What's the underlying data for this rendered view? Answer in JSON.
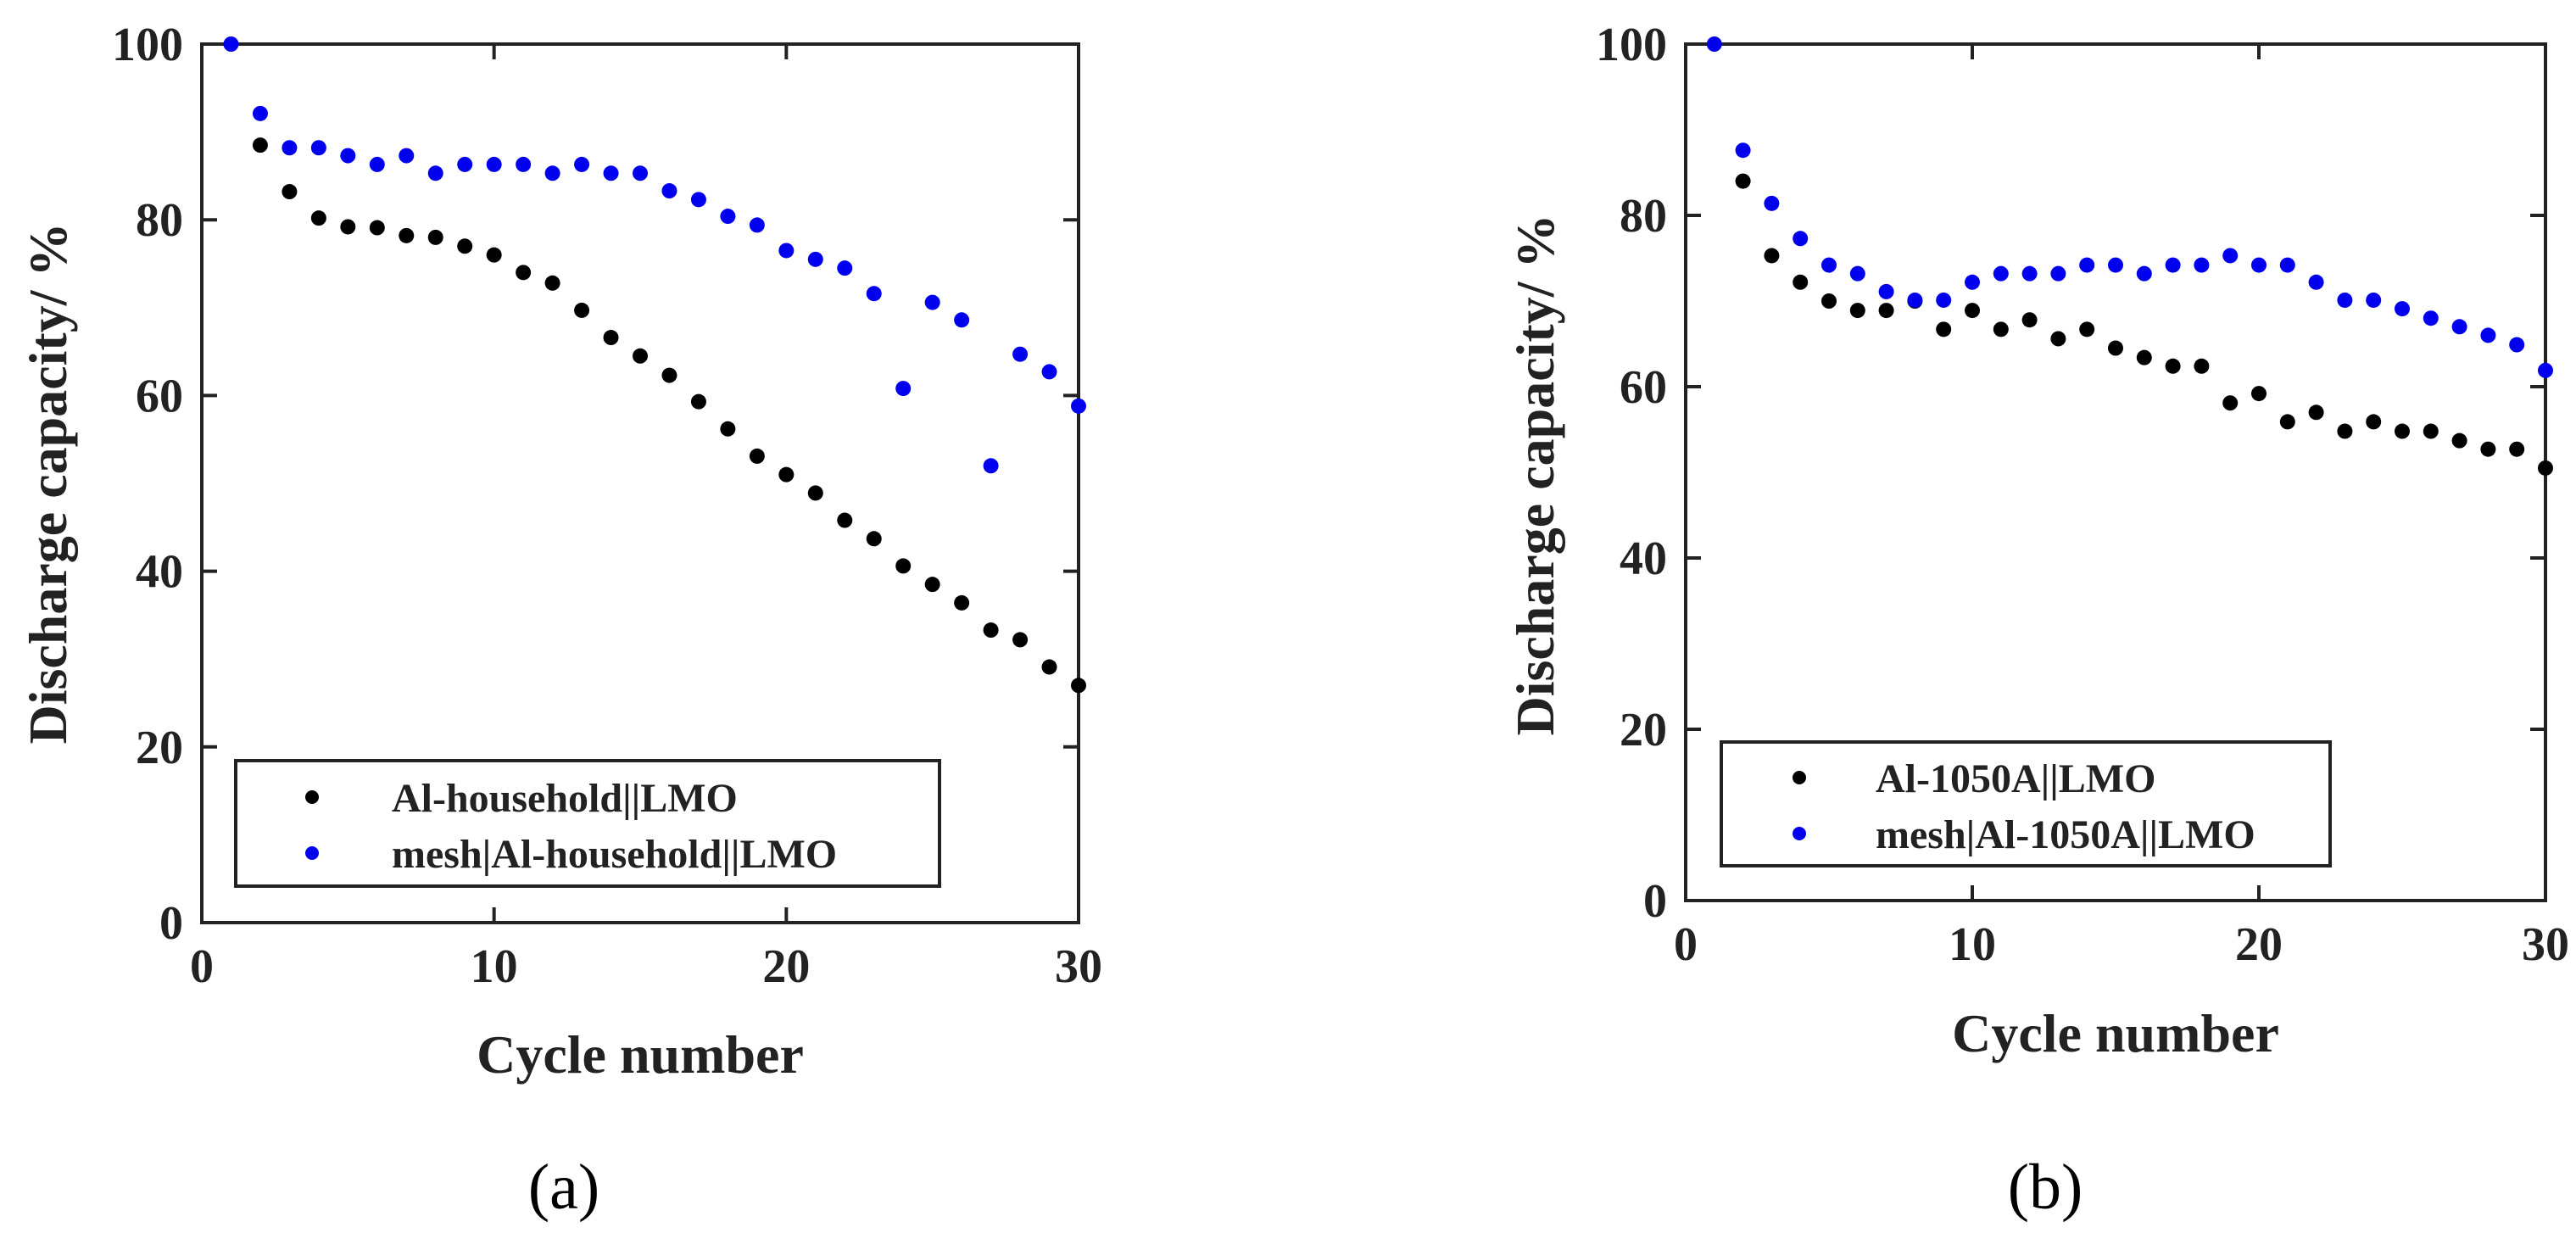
{
  "chart_data": [
    {
      "type": "scatter",
      "panel_label": "(a)",
      "xlabel": "Cycle number",
      "ylabel": "Discharge capacity/ %",
      "xlim": [
        0,
        30
      ],
      "ylim": [
        0,
        100
      ],
      "xticks": [
        0,
        10,
        20,
        30
      ],
      "yticks": [
        0,
        20,
        40,
        60,
        80,
        100
      ],
      "legend_position": "bottom-left",
      "series": [
        {
          "name": "Al-household||LMO",
          "color": "#000000",
          "x": [
            2,
            3,
            4,
            5,
            6,
            7,
            8,
            9,
            10,
            11,
            12,
            13,
            14,
            15,
            16,
            17,
            18,
            19,
            20,
            21,
            22,
            23,
            24,
            25,
            26,
            27,
            28,
            29,
            30
          ],
          "y": [
            88.5,
            83.2,
            80.2,
            79.2,
            79.1,
            78.2,
            78.0,
            77.0,
            76.0,
            74.0,
            72.8,
            69.7,
            66.6,
            64.5,
            62.3,
            59.3,
            56.2,
            53.1,
            51.0,
            48.9,
            45.8,
            43.7,
            40.6,
            38.5,
            36.4,
            33.3,
            32.2,
            29.1,
            27.0
          ]
        },
        {
          "name": "mesh|Al-household||LMO",
          "color": "#0000ee",
          "x": [
            1,
            2,
            3,
            4,
            5,
            6,
            7,
            8,
            9,
            10,
            11,
            12,
            13,
            14,
            15,
            16,
            17,
            18,
            19,
            20,
            21,
            22,
            23,
            24,
            25,
            26,
            27,
            28,
            29,
            30
          ],
          "y": [
            100,
            92.1,
            88.2,
            88.2,
            87.3,
            86.3,
            87.3,
            85.3,
            86.3,
            86.3,
            86.3,
            85.3,
            86.3,
            85.3,
            85.3,
            83.3,
            82.3,
            80.4,
            79.4,
            76.5,
            75.5,
            74.5,
            71.6,
            60.8,
            70.6,
            68.6,
            52.0,
            64.7,
            62.7,
            58.8
          ]
        }
      ]
    },
    {
      "type": "scatter",
      "panel_label": "(b)",
      "xlabel": "Cycle number",
      "ylabel": "Discharge capacity/ %",
      "xlim": [
        0,
        30
      ],
      "ylim": [
        0,
        100
      ],
      "xticks": [
        0,
        10,
        20,
        30
      ],
      "yticks": [
        0,
        20,
        40,
        60,
        80,
        100
      ],
      "legend_position": "bottom-left",
      "series": [
        {
          "name": "Al-1050A||LMO",
          "color": "#000000",
          "x": [
            2,
            3,
            4,
            5,
            6,
            7,
            8,
            9,
            10,
            11,
            12,
            13,
            14,
            15,
            16,
            17,
            18,
            19,
            20,
            21,
            22,
            23,
            24,
            25,
            26,
            27,
            28,
            29,
            30
          ],
          "y": [
            84.0,
            75.3,
            72.2,
            70.0,
            68.9,
            68.9,
            70.0,
            66.7,
            68.9,
            66.7,
            67.8,
            65.6,
            66.7,
            64.5,
            63.4,
            62.4,
            62.4,
            58.1,
            59.2,
            55.9,
            57.0,
            54.8,
            55.9,
            54.8,
            54.8,
            53.7,
            52.7,
            52.7,
            50.5
          ]
        },
        {
          "name": "mesh|Al-1050A||LMO",
          "color": "#0000ee",
          "x": [
            1,
            2,
            3,
            4,
            5,
            6,
            7,
            8,
            9,
            10,
            11,
            12,
            13,
            14,
            15,
            16,
            17,
            18,
            19,
            20,
            21,
            22,
            23,
            24,
            25,
            26,
            27,
            28,
            29,
            30
          ],
          "y": [
            100,
            87.6,
            81.4,
            77.3,
            74.2,
            73.2,
            71.1,
            70.1,
            70.1,
            72.2,
            73.2,
            73.2,
            73.2,
            74.2,
            74.2,
            73.2,
            74.2,
            74.2,
            75.3,
            74.2,
            74.2,
            72.2,
            70.1,
            70.1,
            69.1,
            68.0,
            67.0,
            66.0,
            64.9,
            61.9
          ]
        }
      ]
    }
  ]
}
